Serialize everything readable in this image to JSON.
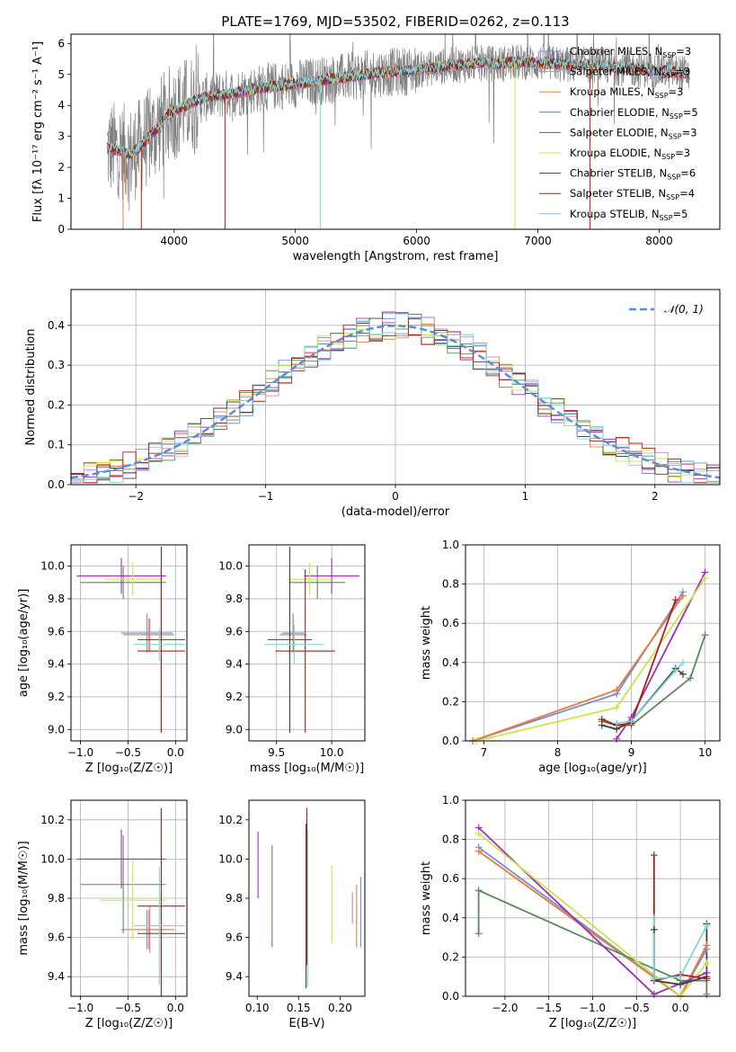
{
  "figure": {
    "title": "PLATE=1769, MJD=53502, FIBERID=0262, z=0.113"
  },
  "colors": {
    "data": "#808080",
    "chabrier_miles": "#6b8fd6",
    "salpeter_miles": "#e377c2",
    "kroupa_miles": "#e8803a",
    "chabrier_elodie": "#5a8a5a",
    "salpeter_elodie": "#9b30b8",
    "kroupa_elodie": "#cce44a",
    "chabrier_stelib": "#404040",
    "salpeter_stelib": "#b01c1c",
    "kroupa_stelib": "#7fd6d6",
    "normal": "#5a8ed6",
    "grid": "#b0b0b0"
  },
  "chart_data": [
    {
      "id": "spectrum",
      "type": "line",
      "title": "PLATE=1769, MJD=53502, FIBERID=0262, z=0.113",
      "xlabel": "wavelength [Angstrom, rest frame]",
      "ylabel": "Flux [fλ 10⁻¹⁷ erg cm⁻² s⁻¹ A⁻¹]",
      "xlim": [
        3150,
        8500
      ],
      "ylim": [
        0,
        6.3
      ],
      "xticks": [
        4000,
        5000,
        6000,
        7000,
        8000
      ],
      "yticks": [
        0,
        1,
        2,
        3,
        4,
        5,
        6
      ],
      "grid": false,
      "legend_position": "right",
      "continuum": {
        "x": [
          3450,
          3550,
          3650,
          3750,
          3850,
          3950,
          4050,
          4150,
          4300,
          4500,
          4700,
          4900,
          5100,
          5300,
          5500,
          5700,
          5900,
          6100,
          6300,
          6500,
          6700,
          6900,
          7100,
          7300,
          7500,
          7700,
          7900,
          8100,
          8250
        ],
        "y": [
          2.6,
          2.55,
          2.4,
          2.8,
          3.2,
          3.7,
          3.9,
          4.1,
          4.3,
          4.4,
          4.55,
          4.65,
          4.75,
          4.85,
          4.95,
          5.05,
          5.1,
          5.2,
          5.3,
          5.35,
          5.35,
          5.4,
          5.35,
          5.3,
          5.3,
          5.2,
          5.15,
          5.1,
          5.0
        ]
      },
      "series": [
        {
          "name": "Chabrier MILES, N_SSP=3",
          "color_key": "chabrier_miles"
        },
        {
          "name": "Salpeter MILES, N_SSP=3",
          "color_key": "salpeter_miles"
        },
        {
          "name": "Kroupa MILES, N_SSP=3",
          "color_key": "kroupa_miles"
        },
        {
          "name": "Chabrier ELODIE, N_SSP=5",
          "color_key": "chabrier_elodie"
        },
        {
          "name": "Salpeter ELODIE, N_SSP=3",
          "color_key": "salpeter_elodie"
        },
        {
          "name": "Kroupa ELODIE, N_SSP=3",
          "color_key": "kroupa_elodie"
        },
        {
          "name": "Chabrier STELIB, N_SSP=6",
          "color_key": "chabrier_stelib"
        },
        {
          "name": "Salpeter STELIB, N_SSP=4",
          "color_key": "salpeter_stelib"
        },
        {
          "name": "Kroupa STELIB, N_SSP=5",
          "color_key": "kroupa_stelib"
        }
      ],
      "legend": [
        {
          "model": "Chabrier MILES",
          "n": "=3",
          "color_key": "chabrier_miles"
        },
        {
          "model": "Salpeter MILES",
          "n": "=3",
          "color_key": "salpeter_miles"
        },
        {
          "model": "Kroupa MILES",
          "n": "=3",
          "color_key": "kroupa_miles"
        },
        {
          "model": "Chabrier ELODIE",
          "n": "=5",
          "color_key": "chabrier_elodie"
        },
        {
          "model": "Salpeter ELODIE",
          "n": "=3",
          "color_key": "salpeter_elodie"
        },
        {
          "model": "Kroupa ELODIE",
          "n": "=3",
          "color_key": "kroupa_elodie"
        },
        {
          "model": "Chabrier STELIB",
          "n": "=6",
          "color_key": "chabrier_stelib"
        },
        {
          "model": "Salpeter STELIB",
          "n": "=4",
          "color_key": "salpeter_stelib"
        },
        {
          "model": "Kroupa STELIB",
          "n": "=5",
          "color_key": "kroupa_stelib"
        }
      ],
      "n_ssp_label": "N",
      "n_ssp_sub": "SSP"
    },
    {
      "id": "residuals",
      "type": "area",
      "xlabel": "(data-model)/error",
      "ylabel": "Normed distribution",
      "xlim": [
        -2.5,
        2.5
      ],
      "ylim": [
        0,
        0.49
      ],
      "xticks": [
        -2,
        -1,
        0,
        1,
        2
      ],
      "xtick_labels": [
        "−2",
        "−1",
        "0",
        "1",
        "2"
      ],
      "yticks": [
        0.0,
        0.1,
        0.2,
        0.3,
        0.4
      ],
      "ytick_labels": [
        "0.0",
        "0.1",
        "0.2",
        "0.3",
        "0.4"
      ],
      "grid": true,
      "bin_width": 0.1,
      "reference_curve": {
        "name": "N(0,1)",
        "type": "gaussian",
        "mu": 0,
        "sigma": 1
      },
      "legend_label": "𝒩(0, 1)",
      "legend_position": "top-right"
    },
    {
      "id": "age_vs_Z",
      "type": "scatter",
      "xlabel": "Z [log₁₀(Z/Z☉)]",
      "ylabel": "age  [log₁₀(age/yr)]",
      "xlim": [
        -1.1,
        0.12
      ],
      "ylim": [
        8.93,
        10.13
      ],
      "xticks": [
        -1.0,
        -0.5,
        0.0
      ],
      "xtick_labels": [
        "−1.0",
        "−0.5",
        "0.0"
      ],
      "yticks": [
        9.0,
        9.2,
        9.4,
        9.6,
        9.8,
        10.0
      ],
      "ytick_labels": [
        "9.0",
        "9.2",
        "9.4",
        "9.6",
        "9.8",
        "10.0"
      ],
      "grid": true,
      "points": [
        {
          "s": "chabrier_miles",
          "x": -0.3,
          "xerr": 0.27,
          "y": 9.59,
          "yerr": 0.12
        },
        {
          "s": "salpeter_miles",
          "x": -0.27,
          "xerr": 0.1,
          "y": 9.58,
          "yerr": 0.1
        },
        {
          "s": "kroupa_miles",
          "x": -0.28,
          "xerr": 0.27,
          "y": 9.58,
          "yerr": 0.1
        },
        {
          "s": "chabrier_elodie",
          "x": -0.55,
          "xerr": 0.45,
          "y": 9.9,
          "yerr": 0.1
        },
        {
          "s": "salpeter_elodie",
          "x": -0.57,
          "xerr": 0.47,
          "y": 9.94,
          "yerr": 0.11
        },
        {
          "s": "kroupa_elodie",
          "x": -0.45,
          "xerr": 0.3,
          "y": 9.92,
          "yerr": 0.1
        },
        {
          "s": "chabrier_stelib",
          "x": -0.15,
          "xerr": 0.25,
          "y": 9.55,
          "yerr": 0.57
        },
        {
          "s": "salpeter_stelib",
          "x": -0.15,
          "xerr": 0.25,
          "y": 9.48,
          "yerr": 0.5
        },
        {
          "s": "kroupa_stelib",
          "x": -0.17,
          "xerr": 0.27,
          "y": 9.52,
          "yerr": 0.1
        }
      ]
    },
    {
      "id": "age_vs_mass",
      "type": "scatter",
      "xlabel": "mass [log₁₀(M/M☉)]",
      "ylabel": "",
      "xlim": [
        9.25,
        10.3
      ],
      "ylim": [
        8.93,
        10.13
      ],
      "xticks": [
        9.5,
        10.0
      ],
      "xtick_labels": [
        "9.5",
        "10.0"
      ],
      "yticks": [
        9.0,
        9.2,
        9.4,
        9.6,
        9.8,
        10.0
      ],
      "ytick_labels": [
        "9.0",
        "9.2",
        "9.4",
        "9.6",
        "9.8",
        "10.0"
      ],
      "grid": true,
      "points": [
        {
          "s": "chabrier_miles",
          "x": 9.65,
          "xerr": 0.1,
          "y": 9.59,
          "yerr": 0.12
        },
        {
          "s": "salpeter_miles",
          "x": 9.65,
          "xerr": 0.12,
          "y": 9.58,
          "yerr": 0.1
        },
        {
          "s": "kroupa_miles",
          "x": 9.65,
          "xerr": 0.12,
          "y": 9.58,
          "yerr": 0.1
        },
        {
          "s": "chabrier_elodie",
          "x": 9.87,
          "xerr": 0.25,
          "y": 9.9,
          "yerr": 0.1
        },
        {
          "s": "salpeter_elodie",
          "x": 10.0,
          "xerr": 0.25,
          "y": 9.94,
          "yerr": 0.11
        },
        {
          "s": "kroupa_elodie",
          "x": 9.8,
          "xerr": 0.2,
          "y": 9.92,
          "yerr": 0.1
        },
        {
          "s": "chabrier_stelib",
          "x": 9.62,
          "xerr": 0.2,
          "y": 9.55,
          "yerr": 0.57
        },
        {
          "s": "salpeter_stelib",
          "x": 9.76,
          "xerr": 0.27,
          "y": 9.48,
          "yerr": 0.5
        },
        {
          "s": "kroupa_stelib",
          "x": 9.66,
          "xerr": 0.27,
          "y": 9.52,
          "yerr": 0.12
        }
      ]
    },
    {
      "id": "mass_weight_vs_age",
      "type": "line",
      "xlabel": "age  [log₁₀(age/yr)]",
      "ylabel": "mass weight",
      "xlim": [
        6.75,
        10.2
      ],
      "ylim": [
        0.0,
        1.0
      ],
      "xticks": [
        7,
        8,
        9,
        10
      ],
      "xtick_labels": [
        "7",
        "8",
        "9",
        "10"
      ],
      "yticks": [
        0.0,
        0.2,
        0.4,
        0.6,
        0.8,
        1.0
      ],
      "ytick_labels": [
        "0.0",
        "0.2",
        "0.4",
        "0.6",
        "0.8",
        "1.0"
      ],
      "grid": true,
      "series": [
        {
          "s": "chabrier_miles",
          "x": [
            6.85,
            8.8,
            9.7
          ],
          "y": [
            0.0,
            0.24,
            0.76
          ]
        },
        {
          "s": "salpeter_miles",
          "x": [
            6.85,
            8.8,
            9.7
          ],
          "y": [
            0.0,
            0.26,
            0.74
          ]
        },
        {
          "s": "kroupa_miles",
          "x": [
            6.85,
            8.8,
            9.7
          ],
          "y": [
            0.0,
            0.26,
            0.74
          ]
        },
        {
          "s": "chabrier_elodie",
          "x": [
            8.6,
            8.8,
            9.0,
            9.8,
            10.0
          ],
          "y": [
            0.1,
            0.08,
            0.08,
            0.32,
            0.54
          ]
        },
        {
          "s": "salpeter_elodie",
          "x": [
            8.8,
            9.0,
            10.0
          ],
          "y": [
            0.01,
            0.12,
            0.86
          ]
        },
        {
          "s": "kroupa_elodie",
          "x": [
            6.9,
            8.8,
            10.0
          ],
          "y": [
            0.0,
            0.17,
            0.83
          ]
        },
        {
          "s": "chabrier_stelib",
          "x": [
            8.6,
            8.8,
            9.0,
            9.6,
            9.7
          ],
          "y": [
            0.08,
            0.06,
            0.1,
            0.37,
            0.34
          ]
        },
        {
          "s": "salpeter_stelib",
          "x": [
            8.6,
            8.8,
            9.0,
            9.6
          ],
          "y": [
            0.11,
            0.08,
            0.09,
            0.72
          ]
        },
        {
          "s": "kroupa_stelib",
          "x": [
            8.8,
            9.0,
            9.6,
            9.7
          ],
          "y": [
            0.09,
            0.1,
            0.36,
            0.4
          ]
        }
      ]
    },
    {
      "id": "mass_vs_Z",
      "type": "scatter",
      "xlabel": "Z [log₁₀(Z/Z☉)]",
      "ylabel": "mass [log₁₀(M/M☉)]",
      "xlim": [
        -1.1,
        0.12
      ],
      "ylim": [
        9.3,
        10.3
      ],
      "xticks": [
        -1.0,
        -0.5,
        0.0
      ],
      "xtick_labels": [
        "−1.0",
        "−0.5",
        "0.0"
      ],
      "yticks": [
        9.4,
        9.6,
        9.8,
        10.0,
        10.2
      ],
      "ytick_labels": [
        "9.4",
        "9.6",
        "9.8",
        "10.0",
        "10.2"
      ],
      "grid": true,
      "points": [
        {
          "s": "chabrier_miles",
          "x": -0.3,
          "xerr": 0.27,
          "y": 9.64,
          "yerr": 0.1
        },
        {
          "s": "salpeter_miles",
          "x": -0.27,
          "xerr": 0.1,
          "y": 9.64,
          "yerr": 0.12
        },
        {
          "s": "kroupa_miles",
          "x": -0.28,
          "xerr": 0.27,
          "y": 9.64,
          "yerr": 0.1
        },
        {
          "s": "chabrier_elodie",
          "x": -0.55,
          "xerr": 0.45,
          "y": 9.87,
          "yerr": 0.25
        },
        {
          "s": "salpeter_elodie",
          "x": -0.57,
          "xerr": 0.47,
          "y": 10.0,
          "yerr": 0.15
        },
        {
          "s": "kroupa_elodie",
          "x": -0.45,
          "xerr": 0.35,
          "y": 9.79,
          "yerr": 0.2
        },
        {
          "s": "chabrier_stelib",
          "x": -0.15,
          "xerr": 0.25,
          "y": 9.62,
          "yerr": 0.2
        },
        {
          "s": "salpeter_stelib",
          "x": -0.15,
          "xerr": 0.25,
          "y": 9.76,
          "yerr": 0.5
        },
        {
          "s": "kroupa_stelib",
          "x": -0.17,
          "xerr": 0.27,
          "y": 9.66,
          "yerr": 0.3
        }
      ]
    },
    {
      "id": "mass_vs_ebv",
      "type": "scatter",
      "xlabel": "E(B-V)",
      "ylabel": "",
      "xlim": [
        0.09,
        0.23
      ],
      "ylim": [
        9.3,
        10.3
      ],
      "xticks": [
        0.1,
        0.15,
        0.2
      ],
      "xtick_labels": [
        "0.10",
        "0.15",
        "0.20"
      ],
      "yticks": [
        9.4,
        9.6,
        9.8,
        10.0,
        10.2
      ],
      "ytick_labels": [
        "9.4",
        "9.6",
        "9.8",
        "10.0",
        "10.2"
      ],
      "grid": false,
      "points": [
        {
          "s": "chabrier_miles",
          "x": 0.225,
          "y": 9.73,
          "yerr": 0.18
        },
        {
          "s": "salpeter_miles",
          "x": 0.215,
          "y": 9.75,
          "yerr": 0.08
        },
        {
          "s": "kroupa_miles",
          "x": 0.22,
          "y": 9.71,
          "yerr": 0.16
        },
        {
          "s": "chabrier_elodie",
          "x": 0.118,
          "y": 9.81,
          "yerr": 0.26
        },
        {
          "s": "salpeter_elodie",
          "x": 0.101,
          "y": 9.97,
          "yerr": 0.17
        },
        {
          "s": "kroupa_elodie",
          "x": 0.19,
          "y": 9.77,
          "yerr": 0.2
        },
        {
          "s": "chabrier_stelib",
          "x": 0.159,
          "y": 9.76,
          "yerr": 0.42
        },
        {
          "s": "salpeter_stelib",
          "x": 0.16,
          "y": 9.86,
          "yerr": 0.4
        },
        {
          "s": "kroupa_stelib",
          "x": 0.161,
          "y": 9.75,
          "yerr": 0.4
        }
      ]
    },
    {
      "id": "mass_weight_vs_Z",
      "type": "line",
      "xlabel": "Z [log₁₀(Z/Z☉)]",
      "ylabel": "mass weight",
      "xlim": [
        -2.45,
        0.45
      ],
      "ylim": [
        0.0,
        1.0
      ],
      "xticks": [
        -2.0,
        -1.5,
        -1.0,
        -0.5,
        0.0
      ],
      "xtick_labels": [
        "−2.0",
        "−1.5",
        "−1.0",
        "−0.5",
        "0.0"
      ],
      "yticks": [
        0.0,
        0.2,
        0.4,
        0.6,
        0.8,
        1.0
      ],
      "ytick_labels": [
        "0.0",
        "0.2",
        "0.4",
        "0.6",
        "0.8",
        "1.0"
      ],
      "grid": true,
      "series": [
        {
          "s": "chabrier_miles",
          "x": [
            -2.3,
            0.0,
            0.3
          ],
          "y": [
            0.76,
            0.0,
            0.24
          ]
        },
        {
          "s": "salpeter_miles",
          "x": [
            -2.3,
            0.0,
            0.3
          ],
          "y": [
            0.74,
            0.0,
            0.26
          ]
        },
        {
          "s": "kroupa_miles",
          "x": [
            -2.3,
            0.0,
            0.3
          ],
          "y": [
            0.74,
            0.0,
            0.26
          ]
        },
        {
          "s": "chabrier_elodie",
          "x": [
            -2.3,
            -2.3,
            0.0,
            0.3,
            0.3
          ],
          "y": [
            0.32,
            0.54,
            0.08,
            0.08,
            0.01
          ]
        },
        {
          "s": "salpeter_elodie",
          "x": [
            -2.3,
            -0.3,
            0.3
          ],
          "y": [
            0.86,
            0.01,
            0.12
          ]
        },
        {
          "s": "kroupa_elodie",
          "x": [
            -2.3,
            0.0,
            0.3
          ],
          "y": [
            0.83,
            0.0,
            0.17
          ]
        },
        {
          "s": "chabrier_stelib",
          "x": [
            -0.3,
            -0.3,
            0.0,
            0.3,
            0.3
          ],
          "y": [
            0.34,
            0.08,
            0.06,
            0.1,
            0.37
          ]
        },
        {
          "s": "salpeter_stelib",
          "x": [
            -0.3,
            -0.3,
            0.0,
            0.3
          ],
          "y": [
            0.72,
            0.08,
            0.11,
            0.09
          ]
        },
        {
          "s": "kroupa_stelib",
          "x": [
            -0.3,
            -0.3,
            0.0,
            0.3
          ],
          "y": [
            0.4,
            0.09,
            0.1,
            0.36
          ]
        }
      ]
    }
  ]
}
